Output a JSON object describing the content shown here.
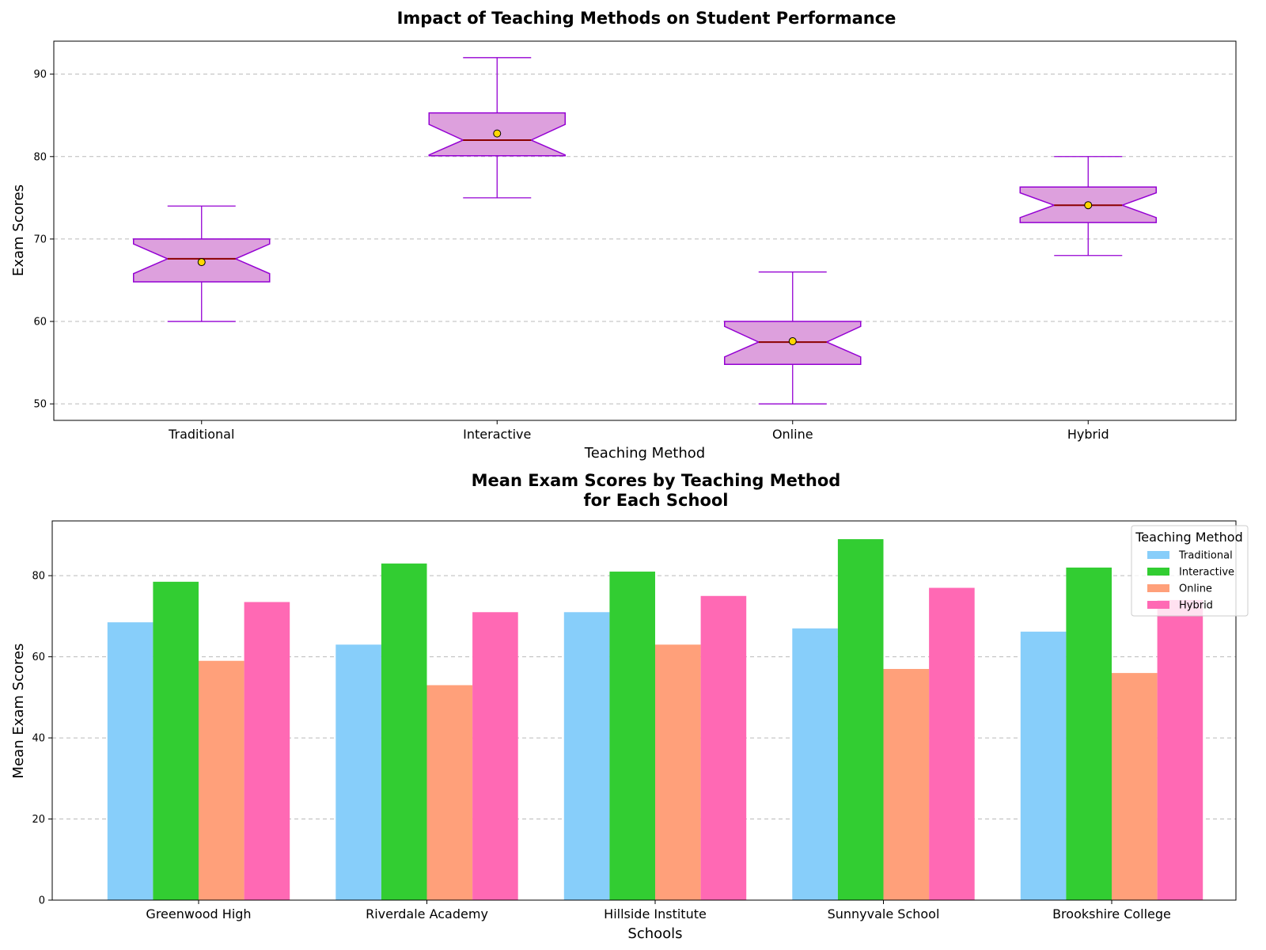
{
  "chart_data": [
    {
      "type": "box",
      "title": "Impact of Teaching Methods on Student Performance",
      "xlabel": "Teaching Method",
      "ylabel": "Exam Scores",
      "ylim": [
        48,
        94
      ],
      "yticks": [
        50,
        60,
        70,
        80,
        90
      ],
      "grid": true,
      "notched": true,
      "box_fill": "#dda0dd",
      "box_edge": "#9400d3",
      "median_color": "#8b0000",
      "mean_marker_color": "#ffd700",
      "categories": [
        "Traditional",
        "Interactive",
        "Online",
        "Hybrid"
      ],
      "boxes": [
        {
          "name": "Traditional",
          "whislo": 60,
          "q1": 64.8,
          "med": 67.6,
          "q3": 70,
          "whishi": 74,
          "mean": 67.2,
          "notch_lo": 65.8,
          "notch_hi": 69.4
        },
        {
          "name": "Interactive",
          "whislo": 75,
          "q1": 80.1,
          "med": 82,
          "q3": 85.3,
          "whishi": 92,
          "mean": 82.8,
          "notch_lo": 80.2,
          "notch_hi": 83.9
        },
        {
          "name": "Online",
          "whislo": 50,
          "q1": 54.8,
          "med": 57.5,
          "q3": 60,
          "whishi": 66,
          "mean": 57.6,
          "notch_lo": 55.7,
          "notch_hi": 59.4
        },
        {
          "name": "Hybrid",
          "whislo": 68,
          "q1": 72,
          "med": 74.1,
          "q3": 76.3,
          "whishi": 80,
          "mean": 74.1,
          "notch_lo": 72.6,
          "notch_hi": 75.6
        }
      ]
    },
    {
      "type": "bar",
      "title": "Mean Exam Scores by Teaching Method\nfor Each School",
      "xlabel": "Schools",
      "ylabel": "Mean Exam Scores",
      "ylim": [
        0,
        93.5
      ],
      "yticks": [
        0,
        20,
        40,
        60,
        80
      ],
      "grid": true,
      "legend_title": "Teaching Method",
      "legend_position": "top-right",
      "categories": [
        "Greenwood High",
        "Riverdale Academy",
        "Hillside Institute",
        "Sunnyvale School",
        "Brookshire College"
      ],
      "series": [
        {
          "name": "Traditional",
          "color": "#87cefa",
          "values": [
            68.5,
            63,
            71,
            67,
            66.2
          ]
        },
        {
          "name": "Interactive",
          "color": "#32cd32",
          "values": [
            78.5,
            83,
            81,
            89,
            82
          ]
        },
        {
          "name": "Online",
          "color": "#ffa07a",
          "values": [
            59,
            53,
            63,
            57,
            56
          ]
        },
        {
          "name": "Hybrid",
          "color": "#ff69b4",
          "values": [
            73.5,
            71,
            75,
            77,
            74
          ]
        }
      ]
    }
  ]
}
